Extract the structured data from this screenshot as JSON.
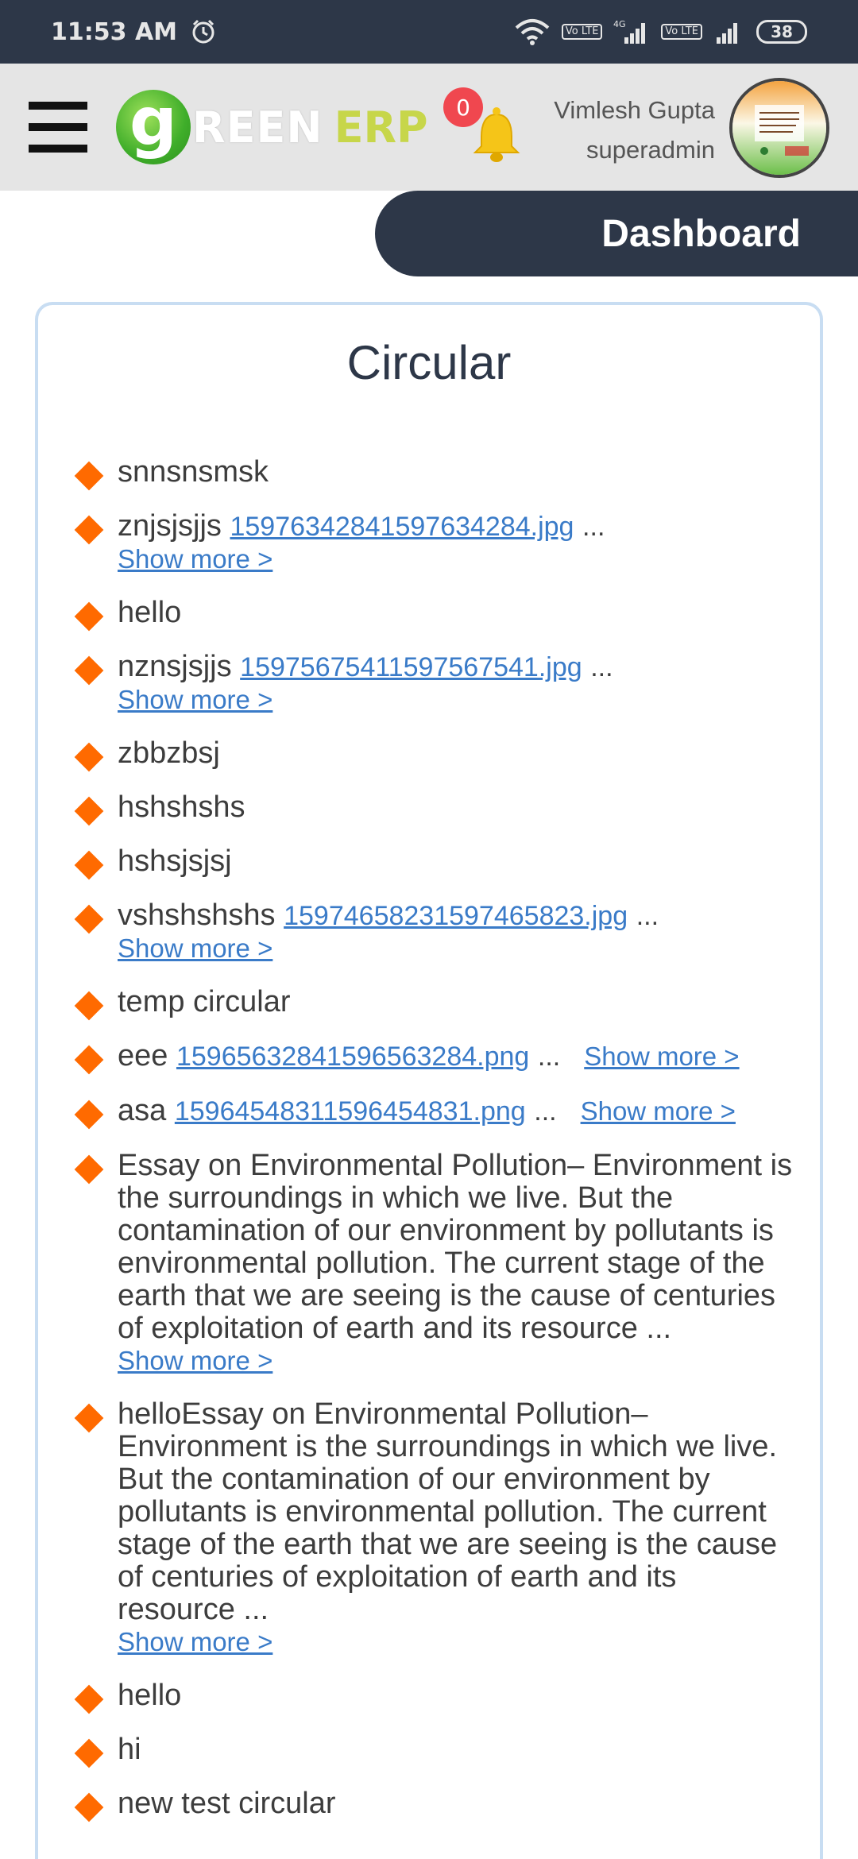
{
  "status_bar": {
    "time": "11:53 AM",
    "battery": "38",
    "lte1": "Vo LTE",
    "lte2": "Vo LTE",
    "net": "4G"
  },
  "header": {
    "logo_g": "g",
    "logo_reen": "REEN",
    "logo_erp": "ERP",
    "notification_count": "0",
    "user_name": "Vimlesh Gupta",
    "user_role": "superadmin"
  },
  "nav": {
    "dashboard_label": "Dashboard"
  },
  "circular": {
    "title": "Circular",
    "show_more_label": "Show more >",
    "ellipsis": "...",
    "items": [
      {
        "text": "snnsnsmsk"
      },
      {
        "text": "znjsjsjjs",
        "file": "15976342841597634284.jpg"
      },
      {
        "text": "hello"
      },
      {
        "text": "nznsjsjjs",
        "file": "15975675411597567541.jpg"
      },
      {
        "text": "zbbzbsj"
      },
      {
        "text": "hshshshs"
      },
      {
        "text": "hshsjsjsj"
      },
      {
        "text": "vshshshshs",
        "file": "15974658231597465823.jpg"
      },
      {
        "text": "temp circular"
      },
      {
        "text": "eee",
        "file": "15965632841596563284.png"
      },
      {
        "text": "asa",
        "file": "15964548311596454831.png"
      },
      {
        "text": "Essay on Environmental Pollution– Environment is the surroundings in which we live. But the contamination of our environment by pollutants is environmental pollution. The current stage of the earth that we are seeing is the cause of centuries of exploitation of earth and its resource ..."
      },
      {
        "text": "helloEssay on Environmental Pollution– Environment is the surroundings in which we live. But the contamination of our environment by pollutants is environmental pollution. The current stage of the earth that we are seeing is the cause of centuries of exploitation of earth and its resource ..."
      },
      {
        "text": "hello"
      },
      {
        "text": "hi"
      },
      {
        "text": "new test circular"
      }
    ]
  },
  "colors": {
    "header_dark": "#2d3748",
    "accent_orange": "#ff6a00",
    "link_blue": "#3a7bc8",
    "badge_red": "#f0474f"
  }
}
